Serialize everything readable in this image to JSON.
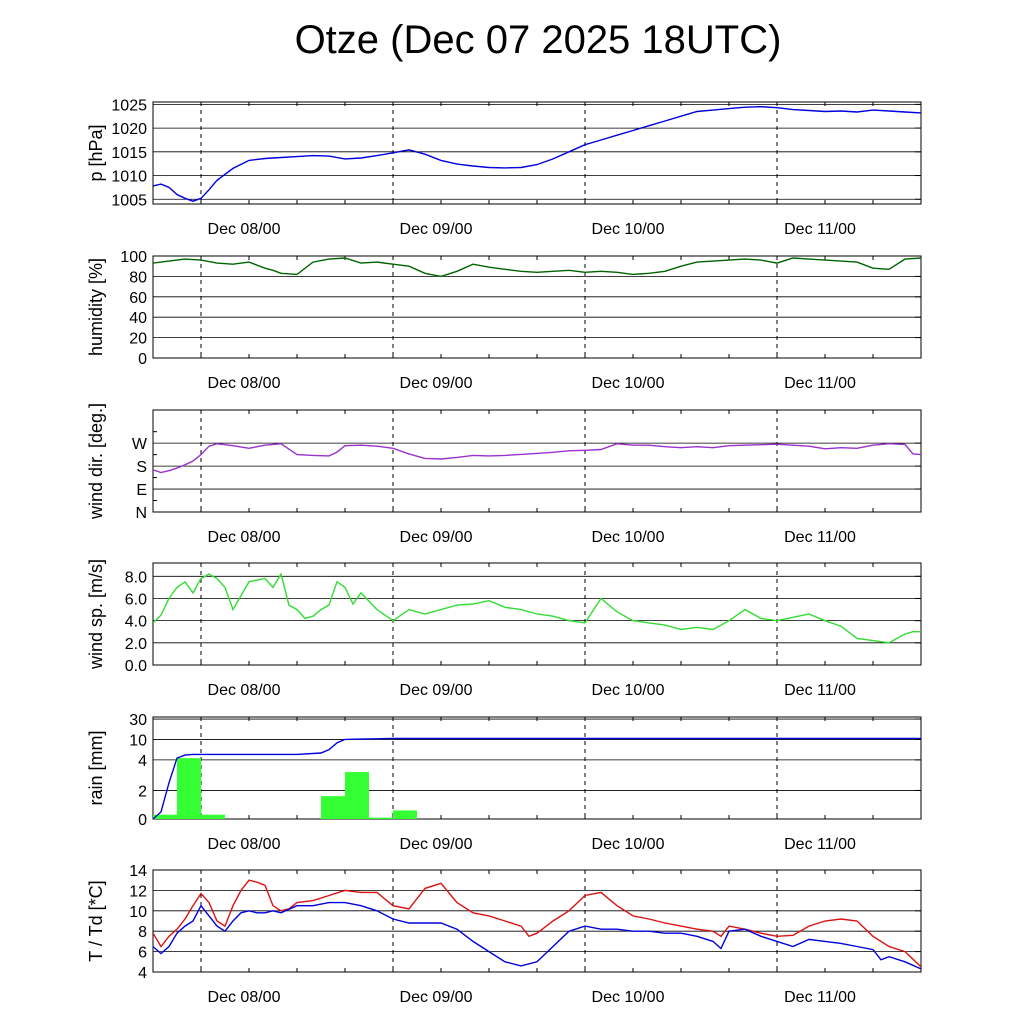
{
  "title": "Otze (Dec 07 2025 18UTC)",
  "x_tick_labels": [
    "Dec 08/00",
    "Dec 09/00",
    "Dec 10/00",
    "Dec 11/00"
  ],
  "colors": {
    "pressure": "#0000dd",
    "humidity": "#006400",
    "wind_dir": "#9a32cd",
    "wind_speed": "#33dd33",
    "rain_bars": "#33ff33",
    "rain_cumulative": "#0000dd",
    "temperature": "#dd1111",
    "dewpoint": "#0000dd"
  },
  "chart_data": [
    {
      "type": "line",
      "id": "pressure",
      "ylabel": "p [hPa]",
      "x_unit": "hours from Dec 07 18UTC",
      "xlim": [
        0,
        96
      ],
      "ylim": [
        1004,
        1025.5
      ],
      "yticks": [
        1005,
        1010,
        1015,
        1020,
        1025
      ],
      "ytick_labels": [
        "1005",
        "1010",
        "1015",
        "1020",
        "1025"
      ],
      "series": [
        {
          "x": [
            0,
            1,
            2,
            3,
            4,
            5,
            6,
            7,
            8,
            10,
            12,
            14,
            16,
            18,
            20,
            22,
            24,
            26,
            28,
            30,
            32,
            34,
            36,
            38,
            40,
            42,
            44,
            46,
            48,
            50,
            52,
            54,
            56,
            58,
            60,
            62,
            64,
            66,
            68,
            70,
            72,
            74,
            76,
            78,
            80,
            82,
            84,
            86,
            88,
            90,
            92,
            94,
            96
          ],
          "y": [
            1007.8,
            1008.2,
            1007.5,
            1006,
            1005.2,
            1004.6,
            1005.2,
            1007,
            1009,
            1011.5,
            1013.2,
            1013.6,
            1013.8,
            1014,
            1014.2,
            1014.1,
            1013.5,
            1013.7,
            1014.2,
            1014.8,
            1015.4,
            1014.5,
            1013.2,
            1012.4,
            1012,
            1011.7,
            1011.6,
            1011.7,
            1012.3,
            1013.5,
            1015,
            1016.5,
            1017.5,
            1018.5,
            1019.5,
            1020.5,
            1021.5,
            1022.5,
            1023.5,
            1023.8,
            1024.1,
            1024.4,
            1024.5,
            1024.3,
            1023.9,
            1023.7,
            1023.5,
            1023.6,
            1023.4,
            1023.8,
            1023.6,
            1023.4,
            1023.2
          ]
        }
      ]
    },
    {
      "type": "line",
      "id": "humidity",
      "ylabel": "humidity [%]",
      "x_unit": "hours from Dec 07 18UTC",
      "xlim": [
        0,
        96
      ],
      "ylim": [
        0,
        100
      ],
      "yticks": [
        0,
        20,
        40,
        60,
        80,
        100
      ],
      "ytick_labels": [
        "0",
        "20",
        "40",
        "60",
        "80",
        "100"
      ],
      "series": [
        {
          "x": [
            0,
            2,
            4,
            6,
            8,
            10,
            12,
            14,
            15,
            16,
            18,
            20,
            22,
            24,
            26,
            28,
            30,
            32,
            34,
            36,
            38,
            40,
            42,
            44,
            46,
            48,
            50,
            52,
            54,
            56,
            58,
            60,
            62,
            64,
            66,
            68,
            70,
            72,
            74,
            76,
            78,
            80,
            82,
            84,
            86,
            88,
            90,
            92,
            94,
            96
          ],
          "y": [
            93,
            95,
            97,
            96,
            93,
            92,
            94,
            88,
            86,
            83,
            82,
            94,
            97,
            98,
            93,
            94,
            92,
            90,
            83,
            80,
            85,
            92,
            89,
            87,
            85,
            84,
            85,
            86,
            84,
            85,
            84,
            82,
            83,
            85,
            90,
            94,
            95,
            96,
            97,
            96,
            93,
            98,
            97,
            96,
            95,
            94,
            88,
            87,
            97,
            98
          ]
        }
      ]
    },
    {
      "type": "line",
      "id": "wind_direction",
      "ylabel": "wind dir. [deg.]",
      "x_unit": "hours from Dec 07 18UTC",
      "xlim": [
        0,
        96
      ],
      "ylim": [
        0,
        400
      ],
      "yticks": [
        0,
        90,
        180,
        270
      ],
      "ytick_labels": [
        "N",
        "E",
        "S",
        "W"
      ],
      "series": [
        {
          "x": [
            0,
            1,
            2,
            3,
            4,
            5,
            6,
            7,
            8,
            10,
            12,
            14,
            16,
            18,
            20,
            22,
            23,
            24,
            26,
            28,
            30,
            32,
            34,
            36,
            38,
            40,
            42,
            44,
            46,
            48,
            50,
            52,
            54,
            56,
            58,
            60,
            62,
            64,
            66,
            68,
            70,
            72,
            74,
            76,
            78,
            80,
            82,
            84,
            86,
            88,
            90,
            92,
            94,
            95,
            96
          ],
          "y": [
            165,
            155,
            162,
            172,
            185,
            200,
            225,
            258,
            268,
            260,
            250,
            262,
            268,
            225,
            222,
            220,
            235,
            260,
            262,
            258,
            250,
            228,
            210,
            208,
            214,
            222,
            220,
            222,
            226,
            230,
            234,
            240,
            242,
            245,
            268,
            262,
            262,
            256,
            252,
            256,
            252,
            260,
            262,
            264,
            266,
            262,
            258,
            248,
            252,
            250,
            262,
            268,
            265,
            228,
            225
          ]
        }
      ]
    },
    {
      "type": "line",
      "id": "wind_speed",
      "ylabel": "wind sp. [m/s]",
      "x_unit": "hours from Dec 07 18UTC",
      "xlim": [
        0,
        96
      ],
      "ylim": [
        0,
        9.2
      ],
      "yticks": [
        0,
        2,
        4,
        6,
        8
      ],
      "ytick_labels": [
        "0.0",
        "2.0",
        "4.0",
        "6.0",
        "8.0"
      ],
      "series": [
        {
          "x": [
            0,
            1,
            2,
            3,
            4,
            5,
            6,
            7,
            8,
            9,
            10,
            12,
            14,
            15,
            16,
            17,
            18,
            19,
            20,
            21,
            22,
            23,
            24,
            25,
            26,
            28,
            30,
            32,
            34,
            36,
            38,
            40,
            42,
            44,
            46,
            48,
            50,
            52,
            54,
            56,
            58,
            60,
            62,
            64,
            66,
            68,
            70,
            72,
            74,
            76,
            78,
            80,
            82,
            84,
            86,
            88,
            90,
            92,
            94,
            95,
            96
          ],
          "y": [
            3.8,
            4.5,
            6.0,
            7.0,
            7.5,
            6.5,
            7.8,
            8.2,
            7.8,
            7.0,
            5.0,
            7.5,
            7.8,
            7.0,
            8.2,
            5.4,
            5.0,
            4.2,
            4.4,
            5.0,
            5.4,
            7.5,
            7.0,
            5.5,
            6.5,
            5.0,
            4.0,
            5.0,
            4.6,
            5.0,
            5.4,
            5.5,
            5.8,
            5.2,
            5.0,
            4.6,
            4.4,
            4.0,
            3.8,
            6.0,
            4.8,
            4.0,
            3.8,
            3.6,
            3.2,
            3.4,
            3.2,
            4.0,
            5.0,
            4.2,
            4.0,
            4.3,
            4.6,
            4.0,
            3.5,
            2.4,
            2.2,
            2.0,
            2.8,
            3.0,
            3.0
          ]
        }
      ]
    },
    {
      "type": "bar",
      "id": "rain",
      "ylabel": "rain [mm]",
      "x_unit": "hours from Dec 07 18UTC",
      "xlim": [
        0,
        96
      ],
      "ylim": [
        0,
        30
      ],
      "yticks": [
        0,
        2,
        4,
        10,
        30
      ],
      "ytick_labels": [
        "0",
        "2",
        "4",
        "10",
        "30"
      ],
      "bar_width_hours": 3,
      "bars": {
        "x": [
          0,
          3,
          6,
          9,
          12,
          15,
          18,
          21,
          24,
          27,
          30,
          33
        ],
        "values": [
          0.3,
          4.5,
          0.3,
          0,
          0,
          0,
          0,
          1.6,
          3.2,
          0.1,
          0.6,
          0
        ]
      },
      "series": [
        {
          "name": "cumulative",
          "x": [
            0,
            1,
            2,
            3,
            4,
            5,
            6,
            8,
            10,
            14,
            18,
            21,
            22,
            23,
            24,
            26,
            28,
            30,
            34,
            40,
            50,
            60,
            70,
            80,
            96
          ],
          "y": [
            0,
            0.5,
            2.5,
            4.5,
            5.4,
            5.6,
            5.6,
            5.6,
            5.6,
            5.6,
            5.6,
            6.0,
            7.0,
            9.0,
            10.0,
            10.3,
            10.6,
            11.0,
            11.0,
            11.0,
            11.0,
            11.0,
            11.0,
            11.0,
            11.0
          ]
        }
      ]
    },
    {
      "type": "line",
      "id": "temperature",
      "ylabel": "T / Td [*C]",
      "x_unit": "hours from Dec 07 18UTC",
      "xlim": [
        0,
        96
      ],
      "ylim": [
        4,
        14
      ],
      "yticks": [
        4,
        6,
        8,
        10,
        12,
        14
      ],
      "ytick_labels": [
        "4",
        "6",
        "8",
        "10",
        "12",
        "14"
      ],
      "series": [
        {
          "name": "T",
          "x": [
            0,
            1,
            2,
            3,
            4,
            5,
            6,
            7,
            8,
            9,
            10,
            11,
            12,
            13,
            14,
            15,
            16,
            17,
            18,
            20,
            22,
            24,
            26,
            28,
            30,
            32,
            34,
            36,
            38,
            40,
            42,
            44,
            46,
            47,
            48,
            50,
            52,
            54,
            56,
            58,
            60,
            62,
            64,
            66,
            68,
            70,
            71,
            72,
            74,
            76,
            78,
            80,
            82,
            84,
            86,
            88,
            90,
            92,
            94,
            96
          ],
          "y": [
            7.8,
            6.5,
            7.5,
            8.2,
            9.2,
            10.5,
            11.7,
            10.8,
            9.0,
            8.5,
            10.5,
            12.0,
            13.0,
            12.8,
            12.5,
            10.5,
            10.0,
            10.2,
            10.8,
            11.0,
            11.5,
            12.0,
            11.8,
            11.8,
            10.5,
            10.2,
            12.2,
            12.7,
            10.8,
            9.8,
            9.5,
            9.0,
            8.5,
            7.5,
            7.8,
            9.0,
            10.0,
            11.5,
            11.8,
            10.5,
            9.5,
            9.2,
            8.8,
            8.5,
            8.2,
            8.0,
            7.5,
            8.5,
            8.2,
            7.8,
            7.5,
            7.6,
            8.5,
            9.0,
            9.2,
            9.0,
            7.5,
            6.5,
            6.0,
            4.5
          ]
        },
        {
          "name": "Td",
          "x": [
            0,
            1,
            2,
            3,
            4,
            5,
            6,
            7,
            8,
            9,
            10,
            11,
            12,
            13,
            14,
            15,
            16,
            18,
            20,
            22,
            24,
            26,
            28,
            30,
            32,
            34,
            36,
            38,
            40,
            42,
            44,
            46,
            48,
            50,
            52,
            54,
            56,
            58,
            60,
            62,
            64,
            66,
            68,
            70,
            71,
            72,
            74,
            76,
            78,
            80,
            82,
            84,
            86,
            88,
            90,
            91,
            92,
            94,
            96
          ],
          "y": [
            6.5,
            5.8,
            6.5,
            7.8,
            8.5,
            9.0,
            10.5,
            9.5,
            8.5,
            8.0,
            9.0,
            9.8,
            10.0,
            9.8,
            9.8,
            10.0,
            9.8,
            10.5,
            10.5,
            10.8,
            10.8,
            10.5,
            10.0,
            9.2,
            8.8,
            8.8,
            8.8,
            8.2,
            7.0,
            6.0,
            5.0,
            4.6,
            5.0,
            6.5,
            8.0,
            8.5,
            8.2,
            8.2,
            8.0,
            8.0,
            7.8,
            7.8,
            7.5,
            7.0,
            6.3,
            8.0,
            8.2,
            7.5,
            7.0,
            6.5,
            7.2,
            7.0,
            6.8,
            6.5,
            6.2,
            5.2,
            5.5,
            5.0,
            4.3
          ]
        }
      ]
    }
  ]
}
